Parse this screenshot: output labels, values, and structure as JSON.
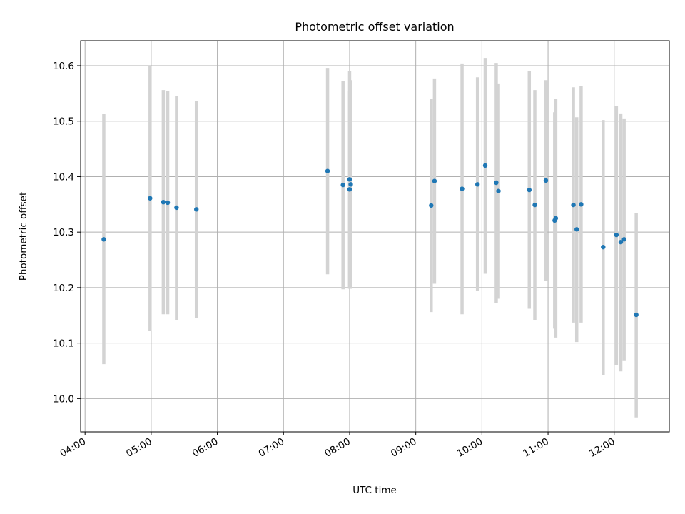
{
  "chart_data": {
    "type": "scatter",
    "title": "Photometric offset variation",
    "xlabel": "UTC time",
    "ylabel": "Photometric offset",
    "xlim": [
      "03:56",
      "12:50"
    ],
    "ylim": [
      9.94,
      10.645
    ],
    "x_ticks": [
      "04:00",
      "05:00",
      "06:00",
      "07:00",
      "08:00",
      "09:00",
      "10:00",
      "11:00",
      "12:00"
    ],
    "y_ticks": [
      "10.0",
      "10.1",
      "10.2",
      "10.3",
      "10.4",
      "10.5",
      "10.6"
    ],
    "grid": true,
    "colors": {
      "point": "#1f77b4",
      "errorbar": "#d3d3d3",
      "grid": "#b0b0b0"
    },
    "points": [
      {
        "x": "04:17",
        "y": 10.287,
        "y_low": 10.062,
        "y_high": 10.513
      },
      {
        "x": "04:59",
        "y": 10.361,
        "y_low": 10.122,
        "y_high": 10.6
      },
      {
        "x": "05:11",
        "y": 10.354,
        "y_low": 10.152,
        "y_high": 10.556
      },
      {
        "x": "05:15",
        "y": 10.353,
        "y_low": 10.152,
        "y_high": 10.554
      },
      {
        "x": "05:23",
        "y": 10.344,
        "y_low": 10.142,
        "y_high": 10.545
      },
      {
        "x": "05:41",
        "y": 10.341,
        "y_low": 10.145,
        "y_high": 10.537
      },
      {
        "x": "07:40",
        "y": 10.41,
        "y_low": 10.224,
        "y_high": 10.596
      },
      {
        "x": "07:54",
        "y": 10.385,
        "y_low": 10.197,
        "y_high": 10.573
      },
      {
        "x": "08:00",
        "y": 10.395,
        "y_low": 10.198,
        "y_high": 10.591
      },
      {
        "x": "08:00",
        "y": 10.377,
        "y_low": 10.199,
        "y_high": 10.555
      },
      {
        "x": "08:01",
        "y": 10.386,
        "y_low": 10.198,
        "y_high": 10.574
      },
      {
        "x": "09:14",
        "y": 10.348,
        "y_low": 10.156,
        "y_high": 10.54
      },
      {
        "x": "09:17",
        "y": 10.392,
        "y_low": 10.207,
        "y_high": 10.577
      },
      {
        "x": "09:42",
        "y": 10.378,
        "y_low": 10.152,
        "y_high": 10.604
      },
      {
        "x": "09:56",
        "y": 10.386,
        "y_low": 10.194,
        "y_high": 10.579
      },
      {
        "x": "10:03",
        "y": 10.42,
        "y_low": 10.225,
        "y_high": 10.614
      },
      {
        "x": "10:13",
        "y": 10.389,
        "y_low": 10.172,
        "y_high": 10.605
      },
      {
        "x": "10:15",
        "y": 10.374,
        "y_low": 10.18,
        "y_high": 10.568
      },
      {
        "x": "10:43",
        "y": 10.376,
        "y_low": 10.162,
        "y_high": 10.591
      },
      {
        "x": "10:48",
        "y": 10.349,
        "y_low": 10.142,
        "y_high": 10.556
      },
      {
        "x": "10:58",
        "y": 10.393,
        "y_low": 10.212,
        "y_high": 10.574
      },
      {
        "x": "11:06",
        "y": 10.321,
        "y_low": 10.126,
        "y_high": 10.516
      },
      {
        "x": "11:07",
        "y": 10.325,
        "y_low": 10.11,
        "y_high": 10.54
      },
      {
        "x": "11:23",
        "y": 10.349,
        "y_low": 10.137,
        "y_high": 10.561
      },
      {
        "x": "11:26",
        "y": 10.305,
        "y_low": 10.102,
        "y_high": 10.507
      },
      {
        "x": "11:30",
        "y": 10.35,
        "y_low": 10.137,
        "y_high": 10.564
      },
      {
        "x": "11:50",
        "y": 10.273,
        "y_low": 10.043,
        "y_high": 10.502
      },
      {
        "x": "12:02",
        "y": 10.295,
        "y_low": 10.061,
        "y_high": 10.528
      },
      {
        "x": "12:06",
        "y": 10.282,
        "y_low": 10.049,
        "y_high": 10.514
      },
      {
        "x": "12:09",
        "y": 10.287,
        "y_low": 10.069,
        "y_high": 10.505
      },
      {
        "x": "12:20",
        "y": 10.151,
        "y_low": 9.966,
        "y_high": 10.335
      }
    ]
  }
}
